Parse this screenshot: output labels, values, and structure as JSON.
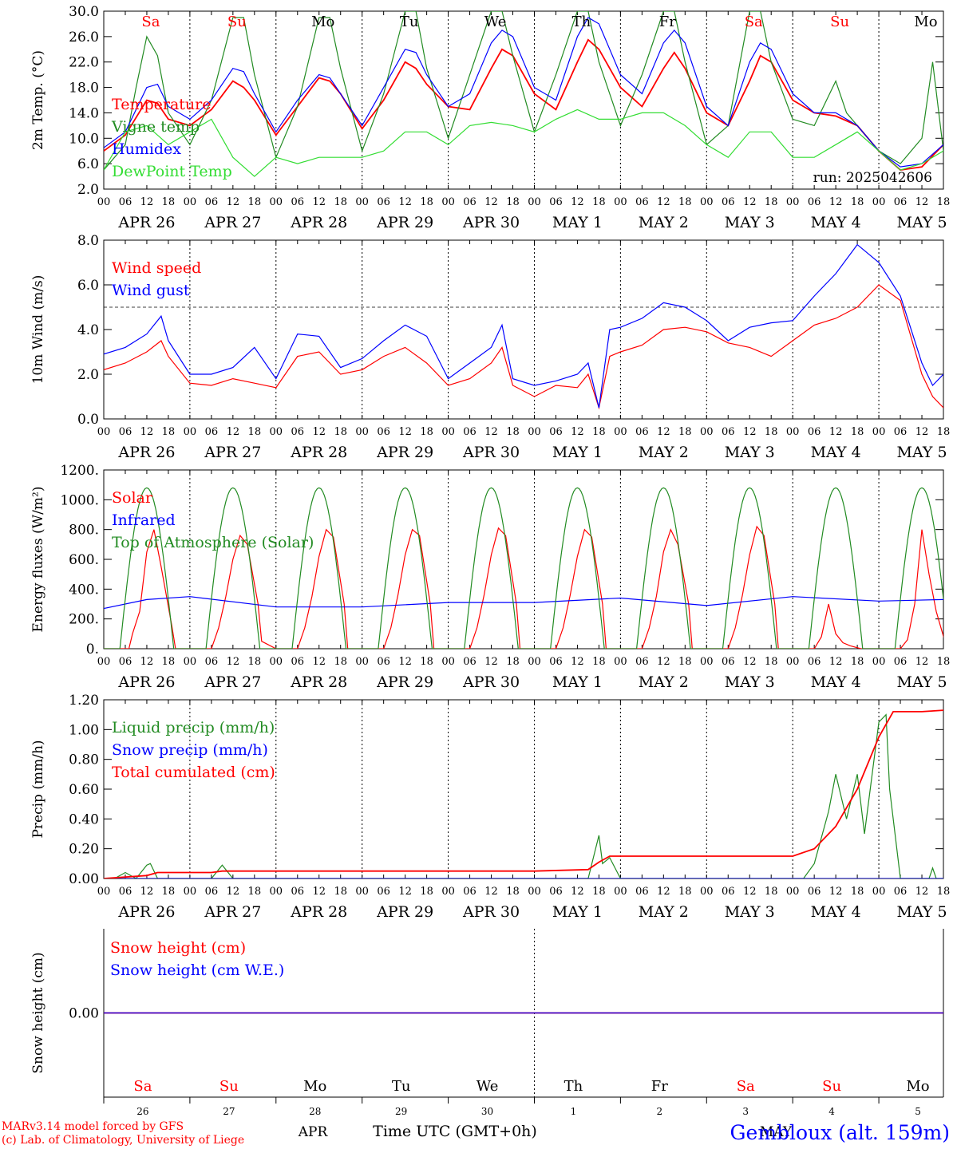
{
  "colors": {
    "red": "#ff0000",
    "green": "#228b22",
    "blue": "#0000ff",
    "lime": "#33dd33",
    "black": "#000000"
  },
  "run_label": "run: 2025042606",
  "footer": {
    "model": "MARv3.14 model forced by GFS",
    "copyright": "(c) Lab. of Climatology, University of Liege",
    "month_apr": "APR",
    "month_may": "MAY",
    "xlabel": "Time UTC (GMT+0h)",
    "station": "Gembloux (alt. 159m)"
  },
  "days": {
    "weekday": [
      "Sa",
      "Su",
      "Mo",
      "Tu",
      "We",
      "Th",
      "Fr",
      "Sa",
      "Su",
      "Mo"
    ],
    "weekend": [
      true,
      true,
      false,
      false,
      false,
      false,
      false,
      true,
      true,
      false
    ],
    "date_labels": [
      "APR 26",
      "APR 27",
      "APR 28",
      "APR 29",
      "APR 30",
      "MAY  1",
      "MAY  2",
      "MAY  3",
      "MAY  4",
      "MAY  5"
    ],
    "day_numbers": [
      "26",
      "27",
      "28",
      "29",
      "30",
      "1",
      "2",
      "3",
      "4",
      "5"
    ],
    "hour_ticks": [
      "00",
      "06",
      "12",
      "18"
    ]
  },
  "chart_data": [
    {
      "type": "line",
      "ylabel": "2m Temp. (°C)",
      "ylim": [
        2,
        30
      ],
      "yticks": [
        "2.0",
        "6.0",
        "10.0",
        "14.0",
        "18.0",
        "22.0",
        "26.0",
        "30.0"
      ],
      "x_unit": "hours since APR 26 00 UTC",
      "series": [
        {
          "name": "Temperature",
          "color": "red",
          "x": [
            0,
            6,
            12,
            15,
            18,
            24,
            30,
            36,
            39,
            42,
            48,
            54,
            60,
            63,
            66,
            72,
            78,
            84,
            87,
            90,
            96,
            102,
            108,
            111,
            114,
            120,
            126,
            132,
            135,
            138,
            144,
            150,
            156,
            159,
            162,
            168,
            174,
            180,
            183,
            186,
            192,
            198,
            204,
            210,
            216,
            222,
            228,
            234
          ],
          "y": [
            8,
            10.5,
            16,
            15.5,
            13,
            12,
            14.5,
            19,
            18,
            16,
            10.5,
            15,
            19.5,
            19,
            17,
            11.5,
            16,
            22,
            21,
            18.5,
            15,
            14.5,
            21,
            24,
            23,
            17,
            14.5,
            22,
            25.5,
            24,
            18,
            15,
            21,
            23.5,
            21,
            14,
            12,
            19,
            23,
            22,
            16,
            14,
            13.5,
            12,
            8,
            5,
            5.5,
            9
          ]
        },
        {
          "name": "Vigne temp",
          "color": "green",
          "x": [
            0,
            6,
            9,
            12,
            15,
            18,
            24,
            30,
            36,
            39,
            42,
            48,
            54,
            60,
            63,
            66,
            72,
            78,
            84,
            87,
            90,
            96,
            102,
            108,
            111,
            114,
            120,
            126,
            132,
            135,
            138,
            144,
            150,
            156,
            159,
            162,
            168,
            174,
            180,
            183,
            186,
            192,
            198,
            204,
            207,
            210,
            216,
            222,
            228,
            231,
            234
          ],
          "y": [
            5,
            9,
            18,
            26,
            23,
            14,
            9,
            16,
            29,
            29,
            20,
            7,
            15,
            29,
            29,
            21,
            8,
            17,
            30,
            30,
            21,
            10,
            20,
            30,
            30,
            23,
            11,
            20,
            30,
            30,
            22,
            12,
            20,
            30,
            30,
            22,
            9,
            12,
            30,
            30,
            22,
            13,
            12,
            19,
            14,
            12,
            8,
            6,
            10,
            22,
            8
          ]
        },
        {
          "name": "Humidex",
          "color": "blue",
          "x": [
            0,
            6,
            12,
            15,
            18,
            24,
            30,
            36,
            39,
            42,
            48,
            54,
            60,
            63,
            66,
            72,
            78,
            84,
            87,
            90,
            96,
            102,
            108,
            111,
            114,
            120,
            126,
            132,
            135,
            138,
            144,
            150,
            156,
            159,
            162,
            168,
            174,
            180,
            183,
            186,
            192,
            198,
            204,
            210,
            216,
            222,
            228,
            234
          ],
          "y": [
            8.5,
            11,
            18,
            18.5,
            15,
            13,
            16,
            21,
            20.5,
            17,
            11,
            16,
            20,
            19.5,
            17,
            12,
            18,
            24,
            23.5,
            20,
            15,
            17,
            25,
            27,
            26,
            18,
            16,
            26,
            29,
            28,
            20,
            17,
            25,
            27,
            25,
            15,
            12,
            22,
            25,
            24,
            17,
            14,
            14,
            12,
            8,
            5.5,
            6,
            9
          ]
        },
        {
          "name": "DewPoint Temp",
          "color": "lime",
          "x": [
            0,
            6,
            12,
            18,
            24,
            30,
            36,
            42,
            48,
            54,
            60,
            66,
            72,
            78,
            84,
            90,
            96,
            102,
            108,
            114,
            120,
            126,
            132,
            138,
            144,
            150,
            156,
            162,
            168,
            174,
            180,
            186,
            192,
            198,
            204,
            210,
            216,
            222,
            228,
            234
          ],
          "y": [
            5,
            11,
            12,
            9,
            11,
            13,
            7,
            4,
            7,
            6,
            7,
            7,
            7,
            8,
            11,
            11,
            9,
            12,
            12.5,
            12,
            11,
            13,
            14.5,
            13,
            13,
            14,
            14,
            12,
            9,
            7,
            11,
            11,
            7,
            7,
            9,
            11,
            8,
            5,
            6,
            8
          ]
        }
      ]
    },
    {
      "type": "line",
      "ylabel": "10m Wind (m/s)",
      "ylim": [
        0,
        8
      ],
      "yticks": [
        "0.0",
        "2.0",
        "4.0",
        "6.0",
        "8.0"
      ],
      "ref_line": 5,
      "series": [
        {
          "name": "Wind speed",
          "color": "red",
          "x": [
            0,
            6,
            12,
            16,
            18,
            24,
            30,
            36,
            42,
            48,
            54,
            60,
            66,
            72,
            78,
            84,
            90,
            96,
            102,
            108,
            111,
            114,
            120,
            126,
            132,
            135,
            138,
            141,
            144,
            150,
            156,
            162,
            168,
            174,
            180,
            186,
            192,
            198,
            204,
            210,
            216,
            222,
            228,
            231,
            234
          ],
          "y": [
            2.2,
            2.5,
            3,
            3.5,
            2.8,
            1.6,
            1.5,
            1.8,
            1.6,
            1.4,
            2.8,
            3,
            2,
            2.2,
            2.8,
            3.2,
            2.5,
            1.5,
            1.8,
            2.5,
            3.2,
            1.5,
            1,
            1.5,
            1.4,
            2,
            0.5,
            2.8,
            3,
            3.3,
            4,
            4.1,
            3.9,
            3.4,
            3.2,
            2.8,
            3.5,
            4.2,
            4.5,
            5,
            6,
            5.3,
            2,
            1,
            0.5
          ]
        },
        {
          "name": "Wind gust",
          "color": "blue",
          "x": [
            0,
            6,
            12,
            16,
            18,
            24,
            30,
            36,
            42,
            48,
            54,
            60,
            66,
            72,
            78,
            84,
            90,
            96,
            102,
            108,
            111,
            114,
            120,
            126,
            132,
            135,
            138,
            141,
            144,
            150,
            156,
            162,
            168,
            174,
            180,
            186,
            192,
            198,
            204,
            210,
            216,
            222,
            228,
            231,
            234
          ],
          "y": [
            2.9,
            3.2,
            3.8,
            4.6,
            3.5,
            2,
            2,
            2.3,
            3.2,
            1.8,
            3.8,
            3.7,
            2.3,
            2.7,
            3.5,
            4.2,
            3.7,
            1.8,
            2.5,
            3.2,
            4.2,
            1.8,
            1.5,
            1.7,
            2,
            2.5,
            0.5,
            4,
            4.1,
            4.5,
            5.2,
            5,
            4.4,
            3.5,
            4.1,
            4.3,
            4.4,
            5.5,
            6.5,
            7.8,
            7,
            5.5,
            2.5,
            1.5,
            2
          ]
        }
      ]
    },
    {
      "type": "line",
      "ylabel": "Energy fluxes (W/m²)",
      "ylim": [
        0,
        1200
      ],
      "yticks": [
        "0.",
        "200.",
        "400.",
        "600.",
        "800.",
        "1000.",
        "1200."
      ],
      "series": [
        {
          "name": "Solar",
          "color": "red",
          "x": [
            0,
            4,
            7,
            8,
            10,
            12,
            14,
            16,
            19,
            20,
            24,
            28,
            30,
            32,
            34,
            36,
            38,
            40,
            43,
            44,
            48,
            52,
            54,
            56,
            58,
            60,
            62,
            64,
            67,
            68,
            72,
            76,
            78,
            80,
            82,
            84,
            86,
            88,
            91,
            92,
            96,
            100,
            102,
            104,
            106,
            108,
            110,
            112,
            115,
            116,
            120,
            124,
            126,
            128,
            130,
            132,
            134,
            136,
            139,
            140,
            144,
            148,
            150,
            152,
            154,
            156,
            158,
            160,
            163,
            164,
            168,
            172,
            174,
            176,
            178,
            180,
            182,
            184,
            187,
            188,
            192,
            196,
            198,
            200,
            202,
            204,
            206,
            208,
            211,
            212,
            216,
            220,
            222,
            224,
            226,
            228,
            230,
            232,
            235,
            236
          ],
          "y": [
            0,
            0,
            0,
            100,
            250,
            650,
            800,
            550,
            150,
            0,
            0,
            0,
            0,
            140,
            350,
            600,
            760,
            700,
            300,
            50,
            0,
            0,
            0,
            140,
            350,
            620,
            800,
            750,
            300,
            0,
            0,
            0,
            0,
            140,
            360,
            630,
            800,
            760,
            300,
            0,
            0,
            0,
            0,
            140,
            360,
            630,
            810,
            760,
            300,
            0,
            0,
            0,
            0,
            140,
            360,
            620,
            800,
            750,
            300,
            0,
            0,
            0,
            0,
            140,
            350,
            650,
            800,
            700,
            300,
            0,
            0,
            0,
            0,
            140,
            360,
            630,
            820,
            760,
            300,
            0,
            0,
            0,
            0,
            80,
            300,
            100,
            40,
            20,
            0,
            0,
            0,
            0,
            0,
            60,
            300,
            800,
            500,
            250,
            0,
            0
          ]
        },
        {
          "name": "Infrared",
          "color": "blue",
          "x": [
            0,
            12,
            24,
            48,
            72,
            96,
            120,
            144,
            168,
            192,
            216,
            234
          ],
          "y": [
            270,
            330,
            350,
            280,
            280,
            310,
            310,
            340,
            290,
            350,
            320,
            330
          ]
        },
        {
          "name": "Top of Atmosphere (Solar)",
          "color": "green",
          "x": [
            0,
            4,
            5,
            6,
            7,
            8,
            9,
            10,
            11,
            12,
            13,
            14,
            15,
            16,
            17,
            18,
            19,
            20
          ],
          "y": [
            0,
            0,
            50,
            200,
            380,
            560,
            730,
            870,
            980,
            1050,
            1070,
            1050,
            980,
            870,
            730,
            560,
            380,
            200
          ],
          "diurnal": true,
          "period": 24,
          "peak": 1080,
          "sunrise": 4.5,
          "sunset": 19.5
        }
      ]
    },
    {
      "type": "line",
      "ylabel": "Precip (mm/h)",
      "ylim": [
        0,
        1.2
      ],
      "yticks": [
        "0.00",
        "0.20",
        "0.40",
        "0.60",
        "0.80",
        "1.00",
        "1.20"
      ],
      "series": [
        {
          "name": "Liquid precip (mm/h)",
          "color": "green",
          "x": [
            0,
            3,
            6,
            9,
            12,
            13,
            15,
            18,
            30,
            33,
            36,
            120,
            135,
            138,
            139,
            141,
            144,
            195,
            198,
            202,
            204,
            207,
            210,
            212,
            216,
            218,
            219,
            222,
            224,
            230,
            231,
            232,
            234
          ],
          "y": [
            0,
            0,
            0.04,
            0,
            0.09,
            0.1,
            0,
            0,
            0,
            0.09,
            0,
            0,
            0,
            0.29,
            0.1,
            0.14,
            0,
            0,
            0.1,
            0.45,
            0.7,
            0.4,
            0.7,
            0.3,
            1.05,
            1.1,
            0.6,
            0,
            0,
            0,
            0.07,
            0,
            0
          ]
        },
        {
          "name": "Snow precip (mm/h)",
          "color": "blue",
          "x": [
            0,
            234
          ],
          "y": [
            0,
            0
          ]
        },
        {
          "name": "Total cumulated (cm)",
          "color": "red",
          "x": [
            0,
            12,
            15,
            30,
            33,
            120,
            135,
            138,
            141,
            192,
            198,
            204,
            210,
            216,
            220,
            228,
            234
          ],
          "y": [
            0,
            0.02,
            0.04,
            0.04,
            0.05,
            0.05,
            0.06,
            0.11,
            0.15,
            0.15,
            0.2,
            0.35,
            0.6,
            0.95,
            1.12,
            1.12,
            1.13
          ]
        }
      ]
    },
    {
      "type": "line",
      "ylabel": "Snow height (cm)",
      "yticks": [
        "0.00"
      ],
      "series": [
        {
          "name": "Snow height (cm)",
          "color": "red",
          "x": [
            0,
            234
          ],
          "y": [
            0,
            0
          ]
        },
        {
          "name": "Snow height (cm W.E.)",
          "color": "blue",
          "x": [
            0,
            234
          ],
          "y": [
            0,
            0
          ]
        }
      ]
    }
  ]
}
